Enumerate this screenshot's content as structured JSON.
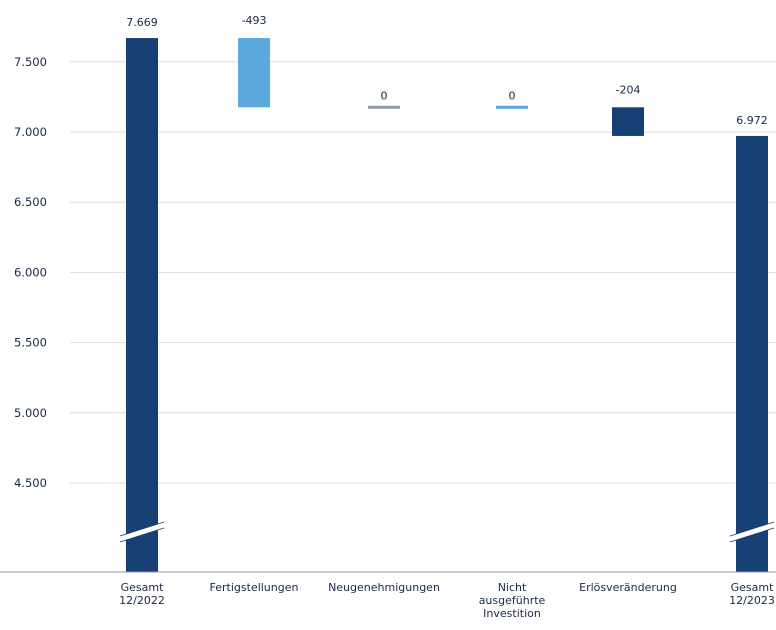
{
  "chart_data": {
    "type": "waterfall",
    "y_axis": {
      "ticks": [
        "4.500",
        "5.000",
        "5.500",
        "6.000",
        "6.500",
        "7.000",
        "7.500"
      ],
      "tick_values": [
        4500,
        5000,
        5500,
        6000,
        6500,
        7000,
        7500
      ],
      "range": [
        4000,
        7750
      ],
      "axis_break": true,
      "grid": true
    },
    "bars": [
      {
        "category": "Gesamt 12/2022",
        "category_lines": [
          "Gesamt",
          "12/2022"
        ],
        "kind": "total",
        "start": 0,
        "end": 7669,
        "label": "7.669",
        "color": "#163f74"
      },
      {
        "category": "Fertigstellungen",
        "category_lines": [
          "Fertigstellungen"
        ],
        "kind": "delta",
        "start": 7669,
        "end": 7176,
        "label": "-493",
        "color": "#5aa8dc"
      },
      {
        "category": "Neugenehmigungen",
        "category_lines": [
          "Neugenehmigungen"
        ],
        "kind": "delta",
        "start": 7176,
        "end": 7176,
        "label": "0",
        "color": "#8e9aa8"
      },
      {
        "category": "Nicht ausgeführte Investition",
        "category_lines": [
          "Nicht",
          "ausgeführte",
          "Investition"
        ],
        "kind": "delta",
        "start": 7176,
        "end": 7176,
        "label": "0",
        "color": "#5aa8dc"
      },
      {
        "category": "Erlösveränderung",
        "category_lines": [
          "Erlösveränderung"
        ],
        "kind": "delta",
        "start": 7176,
        "end": 6972,
        "label": "-204",
        "color": "#163f74"
      },
      {
        "category": "Gesamt 12/2023",
        "category_lines": [
          "Gesamt",
          "12/2023"
        ],
        "kind": "total",
        "start": 0,
        "end": 6972,
        "label": "6.972",
        "color": "#163f74"
      }
    ]
  }
}
